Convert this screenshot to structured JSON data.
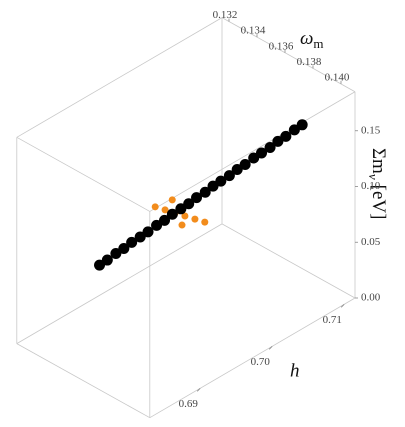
{
  "chart_data": {
    "type": "scatter3d",
    "xlabel": [
      "ω",
      "m"
    ],
    "ylabel": "h",
    "zlabel": [
      "Σm",
      "ν",
      "[eV]"
    ],
    "xlim": [
      0.1315,
      0.141
    ],
    "ylim": [
      0.683,
      0.7115
    ],
    "zlim": [
      0,
      0.185
    ],
    "xticks": [
      0.132,
      0.134,
      0.136,
      0.138,
      {
        "value": 0.14,
        "label": "0.140"
      }
    ],
    "yticks": [
      0.69,
      {
        "value": 0.7,
        "label": "0.70"
      },
      0.71
    ],
    "zticks": [
      {
        "value": 0,
        "label": "0.00"
      },
      0.05,
      {
        "value": 0.1,
        "label": "0.10"
      },
      0.15
    ],
    "series": [
      {
        "color": "#f28c1c",
        "x": [
          0.13218,
          0.13273,
          0.13329,
          0.13384,
          0.1344,
          0.13495,
          0.13237,
          0.1343
        ],
        "y": [
          0.7009,
          0.7012,
          0.7015,
          0.7018,
          0.7021,
          0.7024,
          0.7029,
          0.7005
        ],
        "z": [
          0.06,
          0.06,
          0.06,
          0.06,
          0.06,
          0.06,
          0.06,
          0.06
        ]
      },
      {
        "color": "#000000",
        "x": [
          0.1317,
          0.13195,
          0.1322,
          0.13246,
          0.13271,
          0.13296,
          0.13321,
          0.13346,
          0.13372,
          0.13397,
          0.13422,
          0.13447,
          0.13472,
          0.13498,
          0.13523,
          0.13548,
          0.13573,
          0.13598,
          0.13624,
          0.13649,
          0.13674,
          0.13699,
          0.13724,
          0.1375,
          0.13775,
          0.138
        ],
        "y": [
          0.6941,
          0.6947,
          0.6954,
          0.696,
          0.6966,
          0.6973,
          0.6979,
          0.6986,
          0.6992,
          0.6998,
          0.7005,
          0.7011,
          0.7017,
          0.7024,
          0.703,
          0.7036,
          0.7043,
          0.7049,
          0.7055,
          0.7062,
          0.7068,
          0.7075,
          0.7081,
          0.7087,
          0.7094,
          0.71
        ],
        "z": [
          0.03,
          0.034,
          0.039,
          0.043,
          0.048,
          0.052,
          0.056,
          0.061,
          0.065,
          0.07,
          0.074,
          0.078,
          0.083,
          0.087,
          0.092,
          0.096,
          0.1,
          0.105,
          0.109,
          0.114,
          0.118,
          0.122,
          0.127,
          0.131,
          0.136,
          0.14
        ]
      }
    ]
  }
}
